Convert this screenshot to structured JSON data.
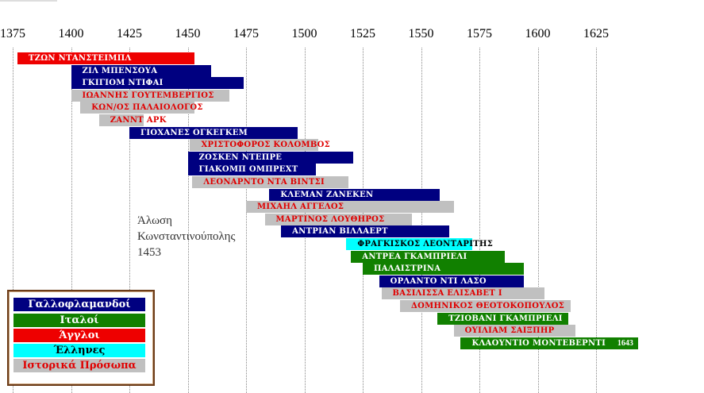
{
  "chart_data": {
    "type": "bar",
    "subtype": "timeline",
    "x_ticks": [
      "1375",
      "1400",
      "1425",
      "1450",
      "1475",
      "1500",
      "1525",
      "1550",
      "1575",
      "1600",
      "1625"
    ],
    "xlim": [
      1375,
      1638
    ],
    "grid": true,
    "colors": {
      "Γαλλοφλαμανδοί": "#000080",
      "Ιταλοί": "#118000",
      "Άγγλοι": "#ee0000",
      "Έλληνες": "#00ffff",
      "Ιστορικά Πρόσωπα": "#c0c0c0"
    },
    "bars": [
      {
        "label": "ΤΖΩΝ ΝΤΑΝΣΤΕΙΜΠΛ",
        "start": 1377,
        "end": 1453,
        "group": "Άγγλοι"
      },
      {
        "label": "ΖΙΛ ΜΠΕΝΣΟΥΑ",
        "start": 1400,
        "end": 1460,
        "group": "Γαλλοφλαμανδοί"
      },
      {
        "label": "ΓΚΙΓΙΟΜ ΝΤΙΦΑΙ",
        "start": 1400,
        "end": 1474,
        "group": "Γαλλοφλαμανδοί"
      },
      {
        "label": "ΙΩΑΝΝΗΣ ΓΟΥΤΕΜΒΕΡΓΙΟΣ",
        "start": 1400,
        "end": 1468,
        "group": "Ιστορικά Πρόσωπα"
      },
      {
        "label": "ΚΩΝ/ΟΣ ΠΑΛΑΙΟΛΟΓΟΣ",
        "start": 1404,
        "end": 1453,
        "group": "Ιστορικά Πρόσωπα"
      },
      {
        "label": "ΖΑΝΝΤ ΑΡΚ",
        "start": 1412,
        "end": 1431,
        "group": "Ιστορικά Πρόσωπα"
      },
      {
        "label": "ΓΙΟΧΑΝΕΣ ΟΓΚΕΓΚΕΜ",
        "start": 1425,
        "end": 1497,
        "group": "Γαλλοφλαμανδοί"
      },
      {
        "label": "ΧΡΙΣΤΟΦΟΡΟΣ ΚΟΛΟΜΒΟΣ",
        "start": 1451,
        "end": 1506,
        "group": "Ιστορικά Πρόσωπα"
      },
      {
        "label": "ΖΟΣΚΕΝ ΝΤΕΠΡΕ",
        "start": 1450,
        "end": 1521,
        "group": "Γαλλοφλαμανδοί"
      },
      {
        "label": "ΓΙΑΚΟΜΠ ΟΜΠΡΕΧΤ",
        "start": 1450,
        "end": 1505,
        "group": "Γαλλοφλαμανδοί"
      },
      {
        "label": "ΛΕΟΝΑΡΝΤΟ ΝΤΑ ΒΙΝΤΣΙ",
        "start": 1452,
        "end": 1519,
        "group": "Ιστορικά Πρόσωπα"
      },
      {
        "label": "ΚΛΕΜΑΝ ΖΑΝΕΚΕΝ",
        "start": 1485,
        "end": 1558,
        "group": "Γαλλοφλαμανδοί"
      },
      {
        "label": "ΜΙΧΑΗΛ ΑΓΓΕΛΟΣ",
        "start": 1475,
        "end": 1564,
        "group": "Ιστορικά Πρόσωπα"
      },
      {
        "label": "ΜΑΡΤΙΝΟΣ ΛΟΥΘΗΡΟΣ",
        "start": 1483,
        "end": 1546,
        "group": "Ιστορικά Πρόσωπα"
      },
      {
        "label": "ΑΝΤΡΙΑΝ ΒΙΛΛΑΕΡΤ",
        "start": 1490,
        "end": 1562,
        "group": "Γαλλοφλαμανδοί"
      },
      {
        "label": "ΦΡΑΓΚΙΣΚΟΣ ΛΕΟΝΤΑΡΙΤΗΣ",
        "start": 1518,
        "end": 1572,
        "group": "Έλληνες"
      },
      {
        "label": "ΑΝΤΡΕΑ ΓΚΑΜΠΡΙΕΛΙ",
        "start": 1520,
        "end": 1586,
        "group": "Ιταλοί"
      },
      {
        "label": "ΠΑΛΑΙΣΤΡΙΝΑ",
        "start": 1525,
        "end": 1594,
        "group": "Ιταλοί"
      },
      {
        "label": "ΟΡΛΑΝΤΟ ΝΤΙ ΛΑΣΟ",
        "start": 1532,
        "end": 1594,
        "group": "Γαλλοφλαμανδοί"
      },
      {
        "label": "ΒΑΣΙΛΙΣΣΑ ΕΛΙΣΑΒΕΤ Ι",
        "start": 1533,
        "end": 1603,
        "group": "Ιστορικά Πρόσωπα"
      },
      {
        "label": "ΔΟΜΗΝΙΚΟΣ ΘΕΟΤΟΚΟΠΟΥΛΟΣ",
        "start": 1541,
        "end": 1614,
        "group": "Ιστορικά Πρόσωπα"
      },
      {
        "label": "ΤΖΙΟΒΑΝΙ ΓΚΑΜΠΡΙΕΛΙ",
        "start": 1557,
        "end": 1613,
        "group": "Ιταλοί"
      },
      {
        "label": "ΟΥΙΛΙΑΜ ΣΑΙΞΠΗΡ",
        "start": 1564,
        "end": 1616,
        "group": "Ιστορικά Πρόσωπα"
      },
      {
        "label": "ΚΛΑΟΥΝΤΙΟ ΜΟΝΤΕΒΕΡΝΤΙ",
        "start": 1567,
        "end": 1643,
        "group": "Ιταλοί",
        "end_label": "1643"
      }
    ],
    "annotation": {
      "lines": [
        "Άλωση",
        "Κωνσταντινούπολης",
        "1453"
      ]
    },
    "legend": [
      {
        "label": "Γαλλοφλαμανδοί",
        "color": "#000080",
        "text_color": "#ffffff"
      },
      {
        "label": "Ιταλοί",
        "color": "#118000",
        "text_color": "#ffffff"
      },
      {
        "label": "Άγγλοι",
        "color": "#ee0000",
        "text_color": "#ffffff"
      },
      {
        "label": "Έλληνες",
        "color": "#00ffff",
        "text_color": "#000000"
      },
      {
        "label": "Ιστορικά Πρόσωπα",
        "color": "#c0c0c0",
        "text_color": "#e00000"
      }
    ],
    "legend_position": "bottom-left"
  }
}
